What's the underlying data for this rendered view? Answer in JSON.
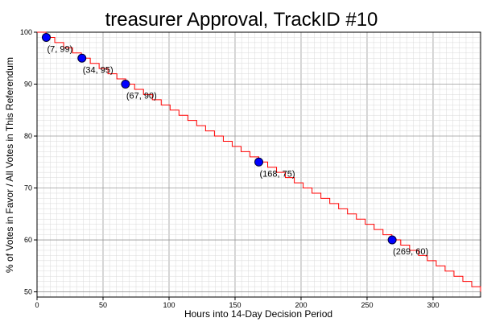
{
  "chart_data": {
    "type": "line",
    "title": "treasurer Approval, TrackID #10",
    "xlabel": "Hours into 14-Day Decision Period",
    "ylabel": "% of Votes in Favor / All Votes in This Referendum",
    "xlim": [
      0,
      336
    ],
    "ylim": [
      49,
      100
    ],
    "x_ticks": [
      0,
      50,
      100,
      150,
      200,
      250,
      300
    ],
    "y_ticks": [
      50,
      60,
      70,
      80,
      90,
      100
    ],
    "grid": true,
    "colors": {
      "line": "#ff0000",
      "marker": "#0000ff",
      "grid_minor": "#d9d9d9",
      "grid_major": "#999999"
    },
    "series": [
      {
        "style": "step",
        "x": [
          0,
          336
        ],
        "y": [
          100,
          50
        ]
      }
    ],
    "highlight_points": [
      {
        "x": 7,
        "y": 99,
        "label": "(7, 99)"
      },
      {
        "x": 34,
        "y": 95,
        "label": "(34, 95)"
      },
      {
        "x": 67,
        "y": 90,
        "label": "(67, 90)"
      },
      {
        "x": 168,
        "y": 75,
        "label": "(168, 75)"
      },
      {
        "x": 269,
        "y": 60,
        "label": "(269, 60)"
      }
    ]
  }
}
